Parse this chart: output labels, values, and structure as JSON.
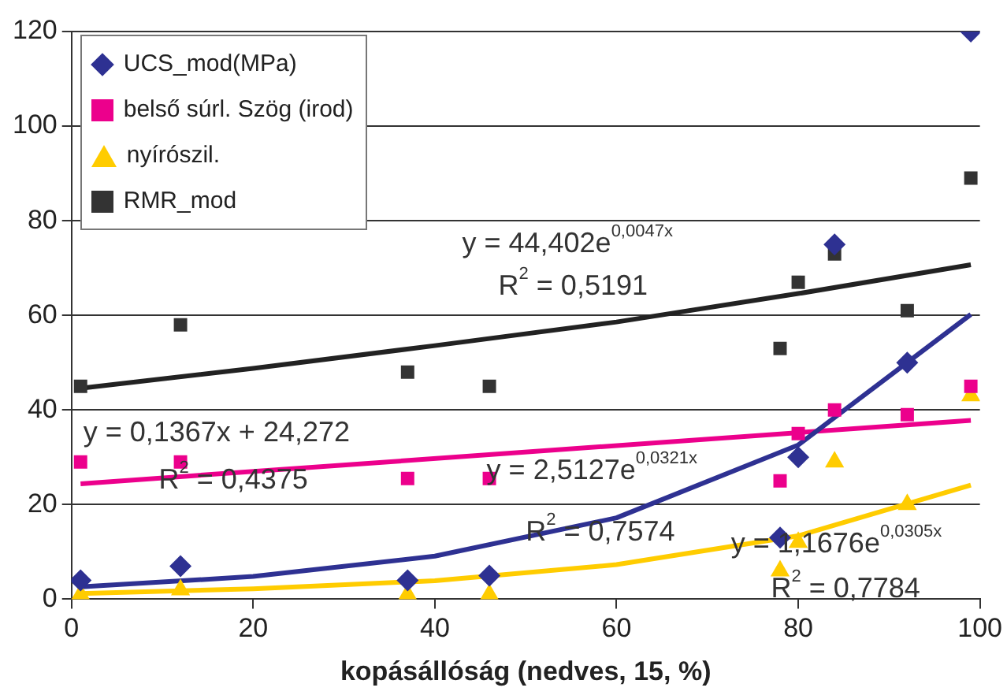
{
  "chart_data": {
    "type": "scatter",
    "xlabel": "kopásállóság (nedves, 15, %)",
    "xlim": [
      0,
      100
    ],
    "xticks": [
      0,
      20,
      40,
      60,
      80,
      100
    ],
    "ylim": [
      0,
      120
    ],
    "yticks": [
      0,
      20,
      40,
      60,
      80,
      100,
      120
    ],
    "grid": "y",
    "legend": "top left",
    "series": [
      {
        "name": "UCS_mod(MPa)",
        "color": "#2e3192",
        "marker": "diamond",
        "x": [
          1,
          12,
          37,
          46,
          78,
          80,
          84,
          92,
          99
        ],
        "values": [
          4,
          7,
          4,
          5,
          13,
          30,
          75,
          50,
          120
        ]
      },
      {
        "name": "belső súrl. Szög (irod)",
        "color": "#ec008c",
        "marker": "square",
        "x": [
          1,
          12,
          37,
          46,
          78,
          80,
          84,
          92,
          99
        ],
        "values": [
          29,
          29,
          25.5,
          25.5,
          25,
          35,
          40,
          39,
          45
        ]
      },
      {
        "name": "nyírószil.",
        "color": "#ffcc00",
        "marker": "triangle",
        "x": [
          1,
          12,
          37,
          46,
          78,
          80,
          84,
          92,
          99
        ],
        "values": [
          1,
          2,
          1,
          1,
          6,
          12,
          29,
          20,
          43
        ]
      },
      {
        "name": "RMR_mod",
        "color": "#333333",
        "marker": "square",
        "x": [
          1,
          12,
          37,
          46,
          78,
          80,
          84,
          92,
          99
        ],
        "values": [
          45,
          58,
          48,
          45,
          53,
          67,
          73,
          61,
          89
        ]
      },
      {
        "type": "line",
        "color": "#2e3192",
        "x": [
          1,
          20,
          40,
          60,
          80,
          99
        ],
        "values": [
          2.6,
          4.8,
          9.1,
          17.2,
          32.6,
          60.2
        ]
      },
      {
        "type": "line",
        "color": "#ec008c",
        "x": [
          1,
          99
        ],
        "values": [
          24.4,
          37.8
        ]
      },
      {
        "type": "line",
        "color": "#ffcc00",
        "x": [
          1,
          20,
          40,
          60,
          80,
          99
        ],
        "values": [
          1.2,
          2.2,
          3.9,
          7.3,
          13.4,
          24.1
        ]
      },
      {
        "type": "line",
        "color": "#222222",
        "x": [
          1,
          20,
          40,
          60,
          80,
          99
        ],
        "values": [
          44.6,
          48.8,
          53.6,
          58.6,
          64.6,
          70.7
        ]
      }
    ],
    "annotations": [
      "y = 44,402e$^{0,0047x}$",
      "R$^{2}$ = 0,5191",
      "y = 0,1367x + 24,272",
      {
        "text": "R$^{2}$ = 0,4375",
        "x": 9.6,
        "y": 25
      },
      {
        "text": "y = 2,5127e$^{0,0321x}$",
        "x": 45.7,
        "y": 27
      },
      {
        "text": "R$^{2}$ = 0,7574",
        "x": 50,
        "y": 14
      },
      {
        "text": "y = 1,1676e$^{0,0305x}$",
        "x": 72.6,
        "y": 11.6
      },
      "R$^{2}$ = 0,7784"
    ]
  }
}
